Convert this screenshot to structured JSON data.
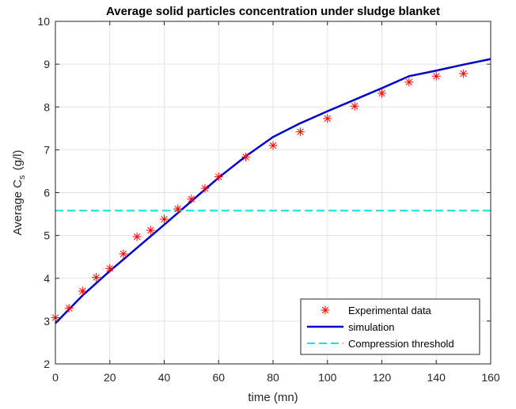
{
  "chart_data": {
    "type": "line",
    "title": "Average solid particles concentration under sludge blanket",
    "xlabel": "time (mn)",
    "ylabel_main": "Average C",
    "ylabel_sub": "s",
    "ylabel_unit": "(g/l)",
    "xlim": [
      0,
      160
    ],
    "ylim": [
      2,
      10
    ],
    "xticks": [
      0,
      20,
      40,
      60,
      80,
      100,
      120,
      140,
      160
    ],
    "yticks": [
      2,
      3,
      4,
      5,
      6,
      7,
      8,
      9,
      10
    ],
    "grid": true,
    "legend_position": "bottom-right",
    "series": [
      {
        "name": "Experimental data",
        "kind": "marker",
        "marker": "*",
        "color": "#ff0000",
        "x": [
          0,
          5,
          10,
          15,
          20,
          25,
          30,
          35,
          40,
          45,
          50,
          55,
          60,
          70,
          80,
          90,
          100,
          110,
          120,
          130,
          140,
          150
        ],
        "y": [
          3.08,
          3.3,
          3.7,
          4.02,
          4.23,
          4.57,
          4.97,
          5.12,
          5.38,
          5.62,
          5.85,
          6.1,
          6.37,
          6.83,
          7.1,
          7.42,
          7.73,
          8.02,
          8.32,
          8.58,
          8.72,
          8.78
        ]
      },
      {
        "name": "simulation",
        "kind": "line",
        "color": "#0000cc",
        "x": [
          0,
          10,
          20,
          30,
          40,
          50,
          60,
          70,
          80,
          90,
          100,
          110,
          120,
          130,
          140,
          150,
          160
        ],
        "y": [
          2.95,
          3.6,
          4.17,
          4.71,
          5.25,
          5.8,
          6.35,
          6.85,
          7.3,
          7.62,
          7.9,
          8.17,
          8.44,
          8.72,
          8.85,
          8.99,
          9.12
        ]
      },
      {
        "name": "Compression threshold",
        "kind": "hline",
        "color": "#00e5e5",
        "dash": true,
        "x": [
          0,
          160
        ],
        "y": [
          5.58,
          5.58
        ]
      }
    ]
  }
}
